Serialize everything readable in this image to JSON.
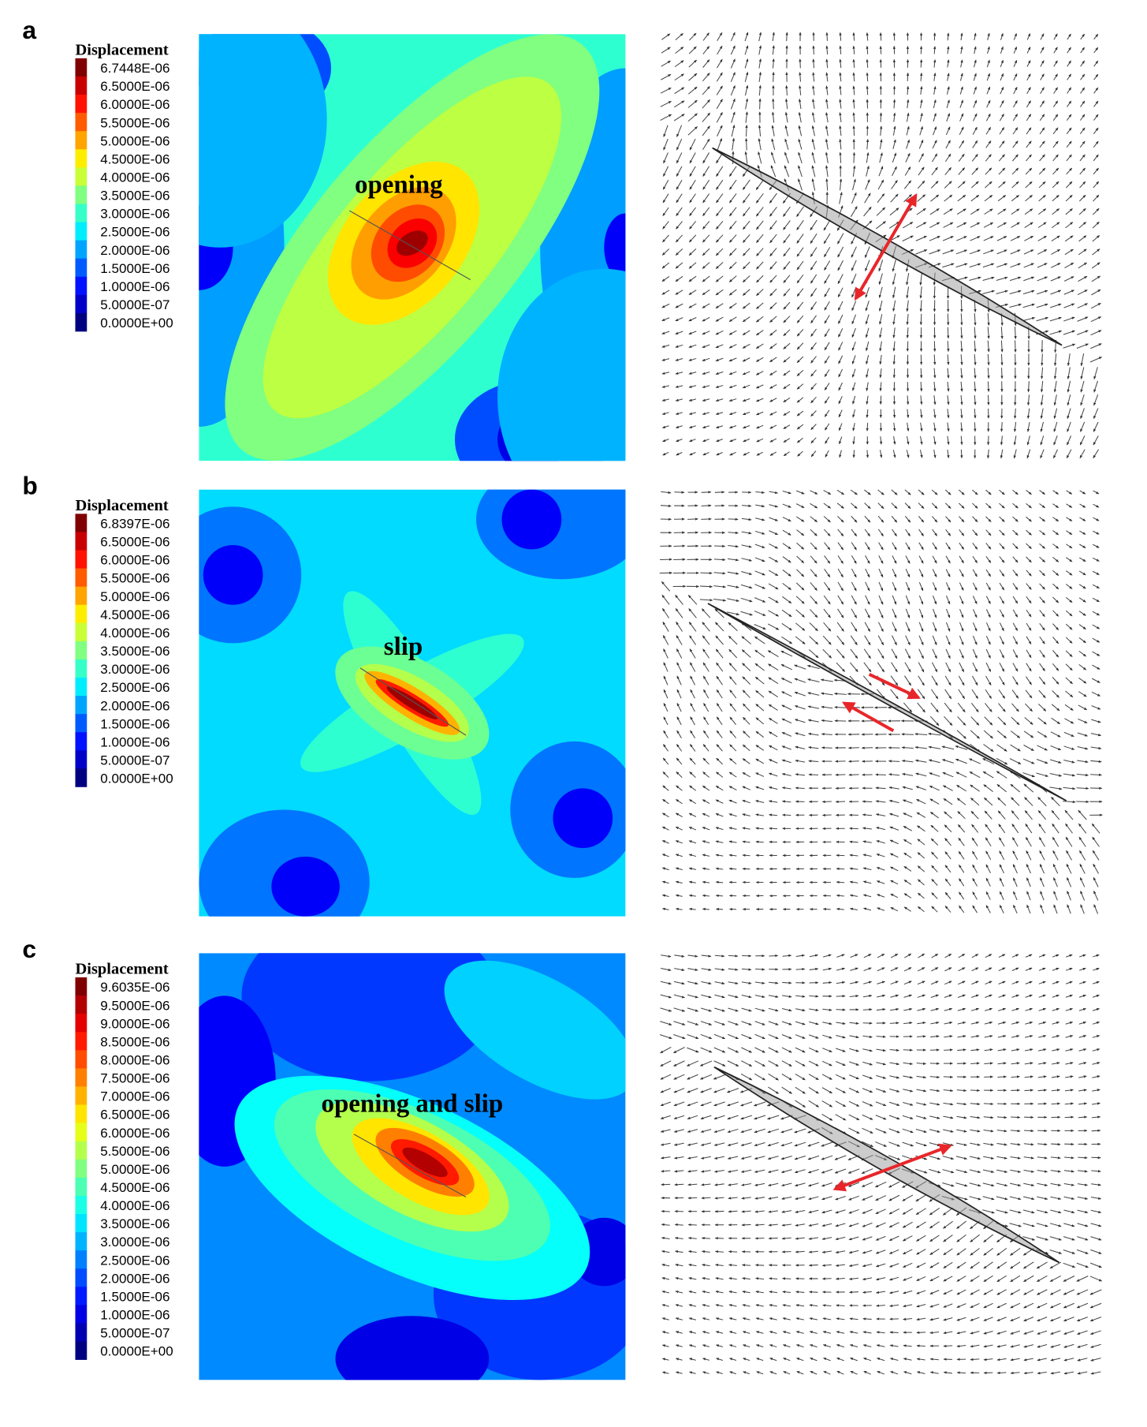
{
  "panels": [
    {
      "label": "a",
      "legend_title": "Displacement",
      "annotation": "opening",
      "legend_labels": [
        "6.7448E-06",
        "6.5000E-06",
        "6.0000E-06",
        "5.5000E-06",
        "5.0000E-06",
        "4.5000E-06",
        "4.0000E-06",
        "3.5000E-06",
        "3.0000E-06",
        "2.5000E-06",
        "2.0000E-06",
        "1.5000E-06",
        "1.0000E-06",
        "5.0000E-07",
        "0.0000E+00"
      ]
    },
    {
      "label": "b",
      "legend_title": "Displacement",
      "annotation": "slip",
      "legend_labels": [
        "6.8397E-06",
        "6.5000E-06",
        "6.0000E-06",
        "5.5000E-06",
        "5.0000E-06",
        "4.5000E-06",
        "4.0000E-06",
        "3.5000E-06",
        "3.0000E-06",
        "2.5000E-06",
        "2.0000E-06",
        "1.5000E-06",
        "1.0000E-06",
        "5.0000E-07",
        "0.0000E+00"
      ]
    },
    {
      "label": "c",
      "legend_title": "Displacement",
      "annotation": "opening and slip",
      "legend_labels": [
        "9.6035E-06",
        "9.5000E-06",
        "9.0000E-06",
        "8.5000E-06",
        "8.0000E-06",
        "7.5000E-06",
        "7.0000E-06",
        "6.5000E-06",
        "6.0000E-06",
        "5.5000E-06",
        "5.0000E-06",
        "4.5000E-06",
        "4.0000E-06",
        "3.5000E-06",
        "3.0000E-06",
        "2.5000E-06",
        "2.0000E-06",
        "1.5000E-06",
        "1.0000E-06",
        "5.0000E-07",
        "0.0000E+00"
      ]
    }
  ]
}
